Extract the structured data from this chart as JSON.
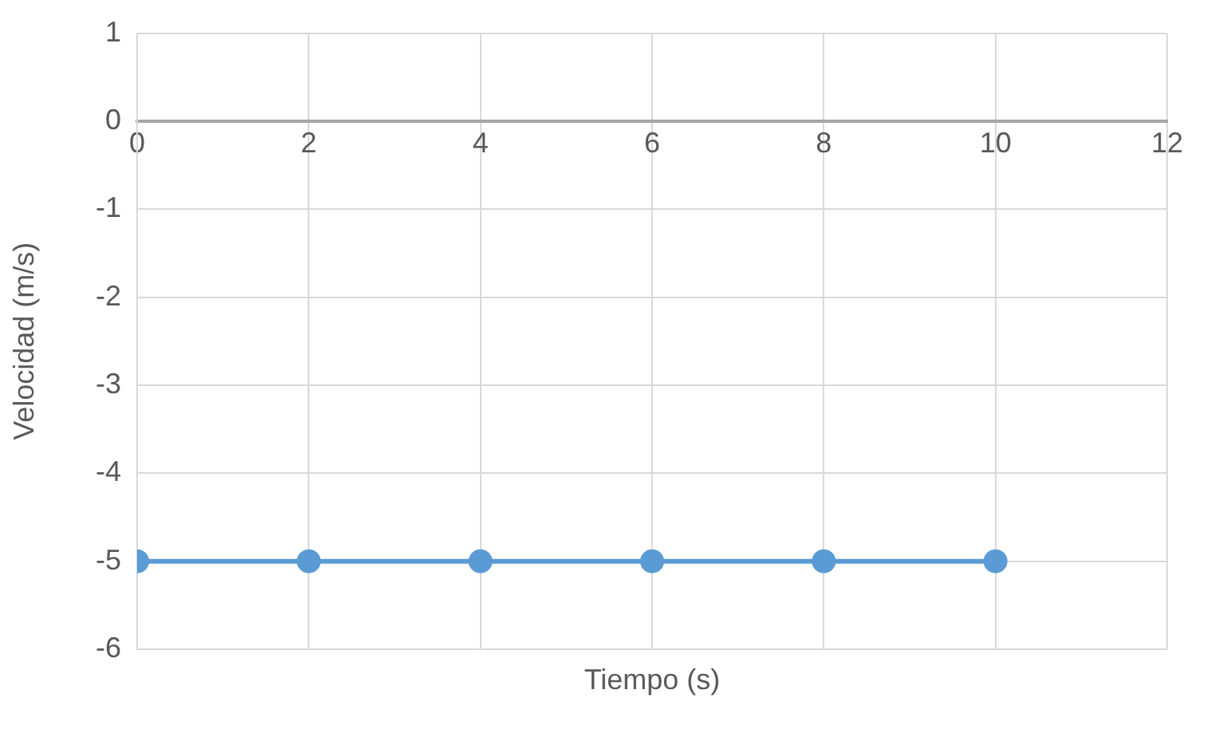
{
  "chart_data": {
    "type": "line",
    "xlabel": "Tiempo (s)",
    "ylabel": "Velocidad (m/s)",
    "x": [
      0,
      2,
      4,
      6,
      8,
      10
    ],
    "series": [
      {
        "color": "#5b9bd5",
        "values": [
          -5,
          -5,
          -5,
          -5,
          -5,
          -5
        ]
      }
    ],
    "xlim": [
      0,
      12
    ],
    "xticks": [
      0,
      2,
      4,
      6,
      8,
      10,
      12
    ],
    "ylim": [
      -6,
      1
    ],
    "yticks": [
      -6,
      -5,
      -4,
      -3,
      -2,
      -1,
      0,
      1
    ],
    "grid": true,
    "legend": false,
    "marker": "circle",
    "line_style": "solid"
  }
}
